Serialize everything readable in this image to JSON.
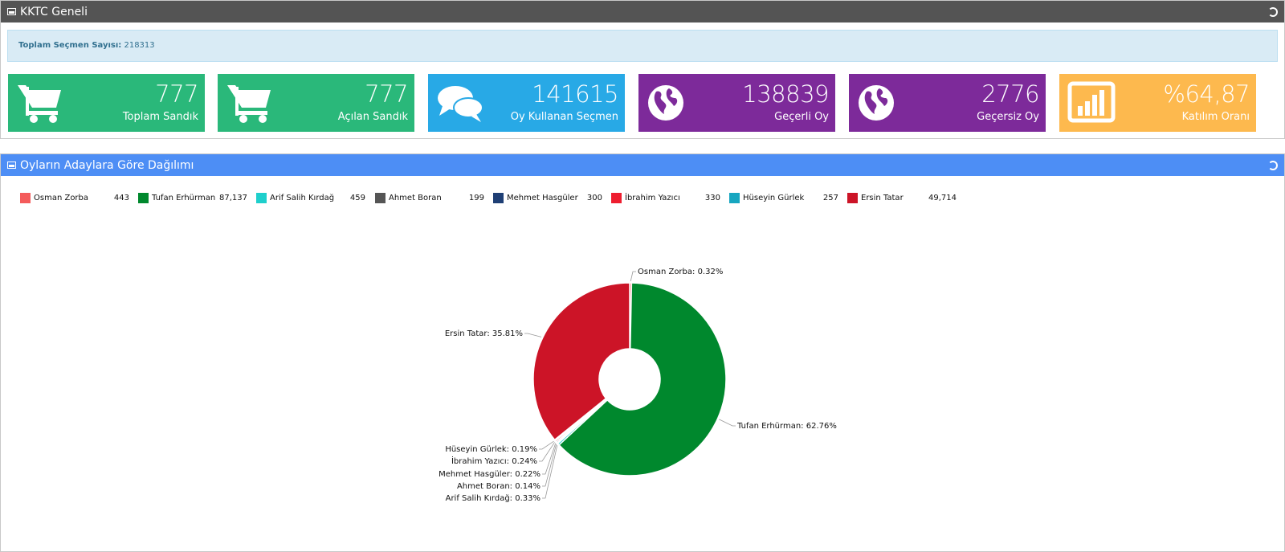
{
  "panel1": {
    "title": "KKTC Geneli",
    "info_label": "Toplam Seçmen Sayısı:",
    "info_value": "218313",
    "tiles": [
      {
        "value": "777",
        "label": "Toplam Sandık",
        "color": "#2ab87a",
        "icon": "cart-icon"
      },
      {
        "value": "777",
        "label": "Açılan Sandık",
        "color": "#2ab87a",
        "icon": "cart-icon"
      },
      {
        "value": "141615",
        "label": "Oy Kullanan Seçmen",
        "color": "#28a9e6",
        "icon": "chat-bubbles-icon"
      },
      {
        "value": "138839",
        "label": "Geçerli Oy",
        "color": "#7d2a9a",
        "icon": "globe-icon"
      },
      {
        "value": "2776",
        "label": "Geçersiz Oy",
        "color": "#7d2a9a",
        "icon": "globe-icon"
      },
      {
        "value": "%64,87",
        "label": "Katılım Oranı",
        "color": "#fdb94e",
        "icon": "bar-chart-icon"
      }
    ]
  },
  "panel2": {
    "title": "Oyların Adaylara Göre Dağılımı"
  },
  "chart_data": {
    "type": "pie",
    "donut": true,
    "legend": [
      {
        "name": "Osman Zorba",
        "value": "443",
        "color": "#f45b5b"
      },
      {
        "name": "Tufan Erhürman",
        "value": "87,137",
        "color": "#00882d"
      },
      {
        "name": "Arif Salih Kırdağ",
        "value": "459",
        "color": "#1ecfcc"
      },
      {
        "name": "Ahmet Boran",
        "value": "199",
        "color": "#555555"
      },
      {
        "name": "Mehmet Hasgüler",
        "value": "300",
        "color": "#1f3f75"
      },
      {
        "name": "İbrahim Yazıcı",
        "value": "330",
        "color": "#ee1d2f"
      },
      {
        "name": "Hüseyin Gürlek",
        "value": "257",
        "color": "#17a6c0"
      },
      {
        "name": "Ersin Tatar",
        "value": "49,714",
        "color": "#cc1427"
      }
    ],
    "slices": [
      {
        "name": "Osman Zorba",
        "value": 0.32,
        "label": "Osman Zorba: 0.32%",
        "color": "#f45b5b"
      },
      {
        "name": "Tufan Erhürman",
        "value": 62.76,
        "label": "Tufan Erhürman: 62.76%",
        "color": "#00882d"
      },
      {
        "name": "Arif Salih Kırdağ",
        "value": 0.33,
        "label": "Arif Salih Kırdağ: 0.33%",
        "color": "#1ecfcc"
      },
      {
        "name": "Ahmet Boran",
        "value": 0.14,
        "label": "Ahmet Boran: 0.14%",
        "color": "#555555"
      },
      {
        "name": "Mehmet Hasgüler",
        "value": 0.22,
        "label": "Mehmet Hasgüler: 0.22%",
        "color": "#1f3f75"
      },
      {
        "name": "İbrahim Yazıcı",
        "value": 0.24,
        "label": "İbrahim Yazıcı: 0.24%",
        "color": "#ee1d2f"
      },
      {
        "name": "Hüseyin Gürlek",
        "value": 0.19,
        "label": "Hüseyin Gürlek: 0.19%",
        "color": "#17a6c0"
      },
      {
        "name": "Ersin Tatar",
        "value": 35.81,
        "label": "Ersin Tatar: 35.81%",
        "color": "#cc1427"
      }
    ]
  }
}
